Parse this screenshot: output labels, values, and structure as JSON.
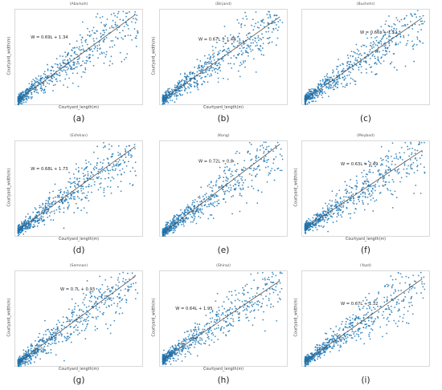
{
  "figure": {
    "background": "#ffffff",
    "point_color": "#1f77b4",
    "fit_line_color": "#555555"
  },
  "chart_data": [
    {
      "type": "scatter",
      "panel": "(a)",
      "title": "(Abarkoh)",
      "xlabel": "Courtyard_length(m)",
      "ylabel": "Courtyard_width(m)",
      "equation": "W = 0.69L + 1.34",
      "slope": 0.69,
      "intercept": 1.34,
      "xlim": [
        0,
        45
      ],
      "ylim": [
        0,
        32
      ],
      "grid": false
    },
    {
      "type": "scatter",
      "panel": "(b)",
      "title": "(Birjand)",
      "xlabel": "Courtyard_length(m)",
      "ylabel": "Courtyard_width(m)",
      "equation": "W = 0.67L + 1.48",
      "slope": 0.67,
      "intercept": 1.48,
      "xlim": [
        0,
        45
      ],
      "ylim": [
        0,
        32
      ],
      "grid": false
    },
    {
      "type": "scatter",
      "panel": "(c)",
      "title": "(Bushehr)",
      "xlabel": "",
      "ylabel": "",
      "equation": "W = 0.66L + 1.52",
      "slope": 0.66,
      "intercept": 1.52,
      "xlim": [
        0,
        45
      ],
      "ylim": [
        0,
        32
      ],
      "grid": false
    },
    {
      "type": "scatter",
      "panel": "(d)",
      "title": "(Esfehan)",
      "xlabel": "Courtyard_length(m)",
      "ylabel": "Courtyard_width(m)",
      "equation": "W = 0.68L + 1.73",
      "slope": 0.68,
      "intercept": 1.73,
      "xlim": [
        0,
        45
      ],
      "ylim": [
        0,
        32
      ],
      "grid": false
    },
    {
      "type": "scatter",
      "panel": "(e)",
      "title": "(Kong)",
      "xlabel": "",
      "ylabel": "",
      "equation": "W = 0.72L + 0.8",
      "slope": 0.72,
      "intercept": 0.8,
      "xlim": [
        0,
        45
      ],
      "ylim": [
        0,
        32
      ],
      "grid": false
    },
    {
      "type": "scatter",
      "panel": "(f)",
      "title": "(Meybod)",
      "xlabel": "Courtyard_length(m)",
      "ylabel": "Courtyard_width(m)",
      "equation": "W = 0.63L + 2.49",
      "slope": 0.63,
      "intercept": 2.49,
      "xlim": [
        0,
        45
      ],
      "ylim": [
        0,
        32
      ],
      "grid": false
    },
    {
      "type": "scatter",
      "panel": "(g)",
      "title": "(Semnan)",
      "xlabel": "Courtyard_length(m)",
      "ylabel": "Courtyard_width(m)",
      "equation": "W = 0.7L + 0.93",
      "slope": 0.7,
      "intercept": 0.93,
      "xlim": [
        0,
        45
      ],
      "ylim": [
        0,
        32
      ],
      "grid": false
    },
    {
      "type": "scatter",
      "panel": "(h)",
      "title": "(Shiraz)",
      "xlabel": "Courtyard_length(m)",
      "ylabel": "Courtyard_width(m)",
      "equation": "W = 0.64L + 1.95",
      "slope": 0.64,
      "intercept": 1.95,
      "xlim": [
        0,
        45
      ],
      "ylim": [
        0,
        32
      ],
      "grid": false
    },
    {
      "type": "scatter",
      "panel": "(i)",
      "title": "(Yazd)",
      "xlabel": "",
      "ylabel": "Courtyard_width(m)",
      "equation": "W = 0.67L + 1.32",
      "slope": 0.67,
      "intercept": 1.32,
      "xlim": [
        0,
        45
      ],
      "ylim": [
        0,
        32
      ],
      "grid": false
    }
  ]
}
